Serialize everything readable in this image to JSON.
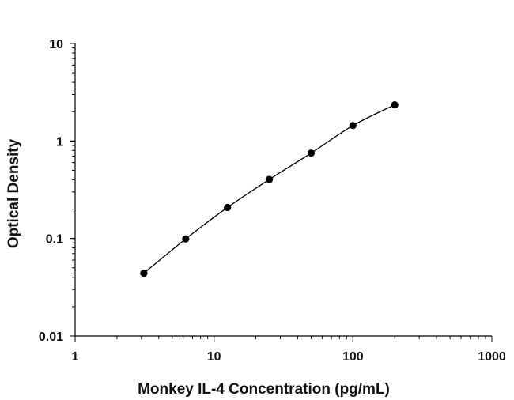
{
  "chart_data": {
    "type": "scatter",
    "title": "",
    "xlabel": "Monkey IL-4 Concentration (pg/mL)",
    "ylabel": "Optical Density",
    "x_scale": "log",
    "y_scale": "log",
    "xlim": [
      1,
      1000
    ],
    "ylim": [
      0.01,
      10
    ],
    "x_ticks": [
      {
        "value": 1,
        "label": "1"
      },
      {
        "value": 10,
        "label": "10"
      },
      {
        "value": 100,
        "label": "100"
      },
      {
        "value": 1000,
        "label": "1000"
      }
    ],
    "y_ticks": [
      {
        "value": 0.01,
        "label": "0.01"
      },
      {
        "value": 0.1,
        "label": "0.1"
      },
      {
        "value": 1,
        "label": "1"
      },
      {
        "value": 10,
        "label": "10"
      }
    ],
    "grid": false,
    "legend": "none",
    "fit_curve": true,
    "series": [
      {
        "x": [
          3.125,
          6.25,
          12.5,
          25,
          50,
          100,
          200
        ],
        "y": [
          0.044,
          0.099,
          0.208,
          0.403,
          0.751,
          1.44,
          2.35
        ]
      }
    ],
    "colors": {
      "points": "#000000",
      "curve": "#000000",
      "axes": "#000000"
    }
  }
}
